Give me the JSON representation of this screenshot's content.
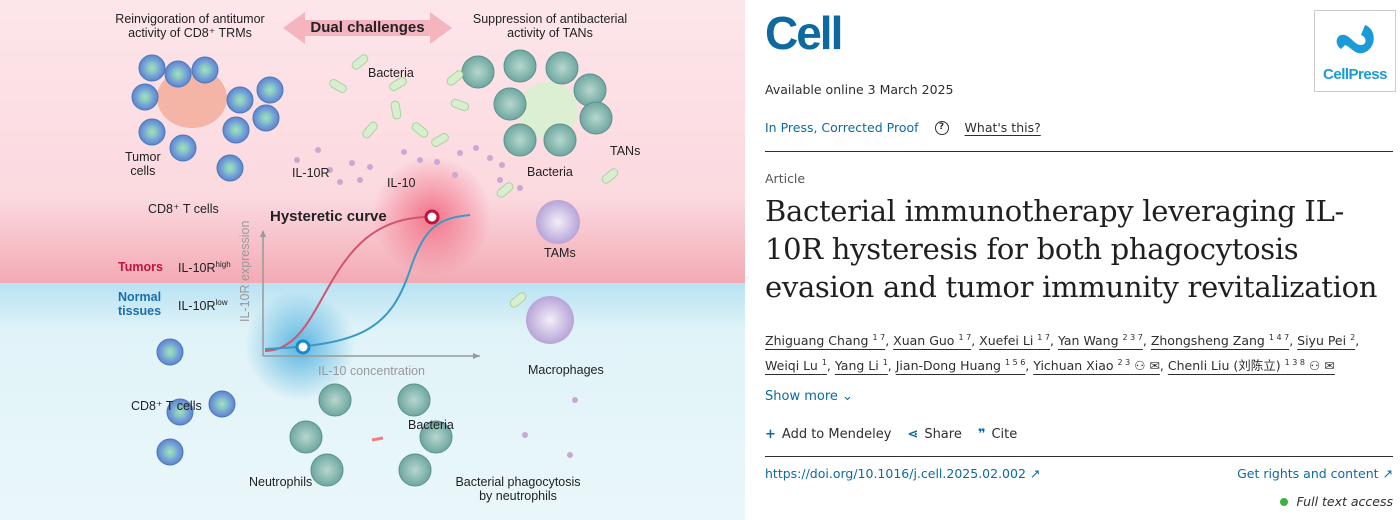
{
  "figure": {
    "header_left": [
      "Reinvigoration of antitumor",
      "activity of CD8⁺ TRMs"
    ],
    "header_center": "Dual challenges",
    "header_right": [
      "Suppression of antibacterial",
      "activity of TANs"
    ],
    "labels": {
      "bacteria_top": "Bacteria",
      "tumor_cells": [
        "Tumor",
        "cells"
      ],
      "il10r": "IL-10R",
      "il10": "IL-10",
      "cd8_top": "CD8⁺ T cells",
      "tans": "TANs",
      "bacteria_tans": "Bacteria",
      "tams": "TAMs",
      "hysteretic_curve": "Hysteretic curve",
      "y_axis": "IL-10R expression",
      "x_axis": "IL-10 concentration",
      "tumors": "Tumors",
      "il10r_high": "IL-10R",
      "high": "high",
      "normal_tissues": [
        "Normal",
        "tissues"
      ],
      "il10r_low": "IL-10R",
      "low": "low",
      "macrophages": "Macrophages",
      "cd8_bottom": "CD8⁺ T cells",
      "bacteria_bottom": "Bacteria",
      "neutrophils": "Neutrophils",
      "phagocytosis": [
        "Bacterial phagocytosis",
        "by neutrophils"
      ]
    },
    "colors": {
      "tumor_red": "#c0143c",
      "normal_blue": "#1a6fae",
      "pink_bg": "#fde4e8",
      "blue_bg": "#e2f3f8"
    }
  },
  "journal": {
    "logo": "Cell",
    "publisher_logo": "CellPress",
    "available_online": "Available online 3 March 2025",
    "status": "In Press, Corrected Proof",
    "help_icon": "question-circle-icon",
    "whats_this": "What's this?"
  },
  "article": {
    "type": "Article",
    "title": "Bacterial immunotherapy leveraging IL-10R hysteresis for both phagocytosis evasion and tumor immunity revitalization",
    "authors": [
      {
        "name": "Zhiguang Chang",
        "aff": "1 7"
      },
      {
        "name": "Xuan Guo",
        "aff": "1 7"
      },
      {
        "name": "Xuefei Li",
        "aff": "1 7"
      },
      {
        "name": "Yan Wang",
        "aff": "2 3 7"
      },
      {
        "name": "Zhongsheng Zang",
        "aff": "1 4 7"
      },
      {
        "name": "Siyu Pei",
        "aff": "2"
      },
      {
        "name": "Weiqi Lu",
        "aff": "1"
      },
      {
        "name": "Yang Li",
        "aff": "1"
      },
      {
        "name": "Jian-Dong Huang",
        "aff": "1 5 6"
      },
      {
        "name": "Yichuan Xiao",
        "aff": "2 3",
        "icons": true
      },
      {
        "name": "Chenli Liu (刘陈立)",
        "aff": "1 3 8",
        "icons": true
      }
    ],
    "show_more": "Show more",
    "actions": {
      "mendeley": "Add to Mendeley",
      "share": "Share",
      "cite": "Cite"
    },
    "doi": "https://doi.org/10.1016/j.cell.2025.02.002",
    "rights": "Get rights and content",
    "access": "Full text access",
    "access_color": "#3cb043"
  }
}
